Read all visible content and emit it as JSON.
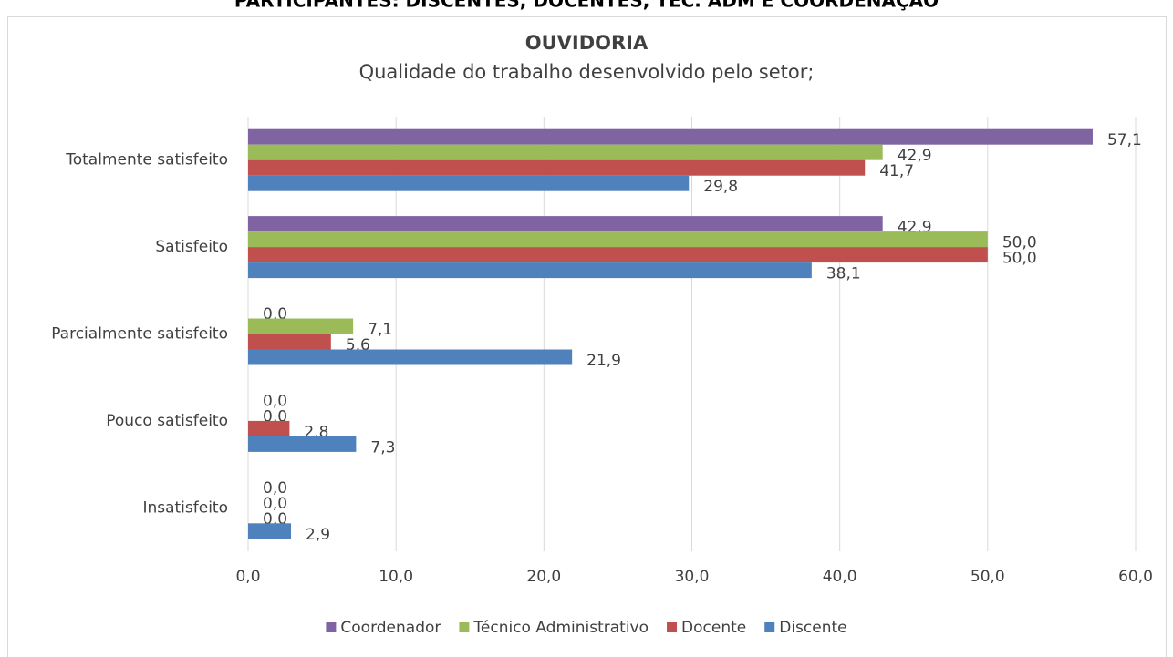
{
  "chart_data": {
    "type": "barh",
    "heading": "PARTICIPANTES: DISCENTES, DOCENTES, TEC. ADM E COORDENAÇÃO",
    "title": "OUVIDORIA",
    "subtitle": "Qualidade do trabalho desenvolvido pelo setor;",
    "categories": [
      "Totalmente satisfeito",
      "Satisfeito",
      "Parcialmente satisfeito",
      "Pouco satisfeito",
      "Insatisfeito"
    ],
    "series": [
      {
        "name": "Coordenador",
        "color": "#8064a2",
        "values": [
          57.1,
          42.9,
          0,
          0,
          0
        ],
        "value_labels": [
          "57,1",
          "42,9",
          "0,0",
          "0,0",
          "0,0"
        ]
      },
      {
        "name": "Técnico Administrativo",
        "color": "#9bbb59",
        "values": [
          42.9,
          50.0,
          7.1,
          0,
          0
        ],
        "value_labels": [
          "42,9",
          "50,0",
          "7,1",
          "0,0",
          "0,0"
        ]
      },
      {
        "name": "Docente",
        "color": "#c0504d",
        "values": [
          41.7,
          50.0,
          5.6,
          2.8,
          0
        ],
        "value_labels": [
          "41,7",
          "50,0",
          "5,6",
          "2,8",
          "0,0"
        ]
      },
      {
        "name": "Discente",
        "color": "#4f81bd",
        "values": [
          29.8,
          38.1,
          21.9,
          7.3,
          2.9
        ],
        "value_labels": [
          "29,8",
          "38,1",
          "21,9",
          "7,3",
          "2,9"
        ]
      }
    ],
    "xlim": [
      0,
      60
    ],
    "xticks": [
      {
        "value": 0,
        "label": "0,0"
      },
      {
        "value": 10,
        "label": "10,0"
      },
      {
        "value": 20,
        "label": "20,0"
      },
      {
        "value": 30,
        "label": "30,0"
      },
      {
        "value": 40,
        "label": "40,0"
      },
      {
        "value": 50,
        "label": "50,0"
      },
      {
        "value": 60,
        "label": "60,0"
      }
    ],
    "grid": true,
    "legend": "bottom"
  }
}
